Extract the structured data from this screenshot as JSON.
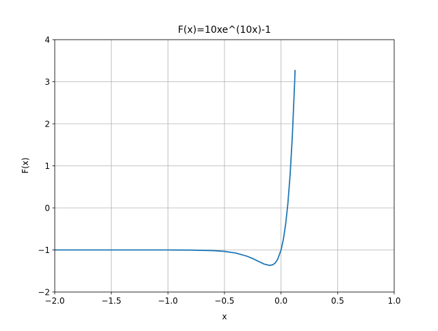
{
  "chart_data": {
    "type": "line",
    "title": "F(x)=10xe^(10x)-1",
    "xlabel": "x",
    "ylabel": "F(x)",
    "xlim": [
      -2.0,
      1.0
    ],
    "ylim": [
      -2,
      4
    ],
    "grid": true,
    "x_ticks": [
      -2.0,
      -1.5,
      -1.0,
      -0.5,
      0.0,
      0.5,
      1.0
    ],
    "x_tick_labels": [
      "−2.0",
      "−1.5",
      "−1.0",
      "−0.5",
      "0.0",
      "0.5",
      "1.0"
    ],
    "y_ticks": [
      -2,
      -1,
      0,
      1,
      2,
      3,
      4
    ],
    "y_tick_labels": [
      "−2",
      "−1",
      "0",
      "1",
      "2",
      "3",
      "4"
    ],
    "series": [
      {
        "name": "F(x)",
        "color": "#1f77b4",
        "x": [
          -2.0,
          -1.5,
          -1.0,
          -0.8,
          -0.6,
          -0.5,
          -0.4,
          -0.3,
          -0.25,
          -0.2,
          -0.15,
          -0.1,
          -0.07,
          -0.05,
          -0.03,
          0.0,
          0.02,
          0.04,
          0.06,
          0.08,
          0.1,
          0.12,
          0.124
        ],
        "values": [
          -1.0,
          -1.0,
          -1.0003,
          -1.0027,
          -1.0149,
          -1.0337,
          -1.0733,
          -1.1494,
          -1.2052,
          -1.2707,
          -1.3347,
          -1.3679,
          -1.3476,
          -1.3033,
          -1.2222,
          -1.0,
          -0.7557,
          -0.4033,
          0.0933,
          0.7805,
          1.7183,
          2.9841,
          3.27
        ]
      }
    ],
    "colors": {
      "line": "#1f77b4",
      "grid": "#b0b0b0",
      "axes": "#000000",
      "background": "#ffffff"
    }
  }
}
